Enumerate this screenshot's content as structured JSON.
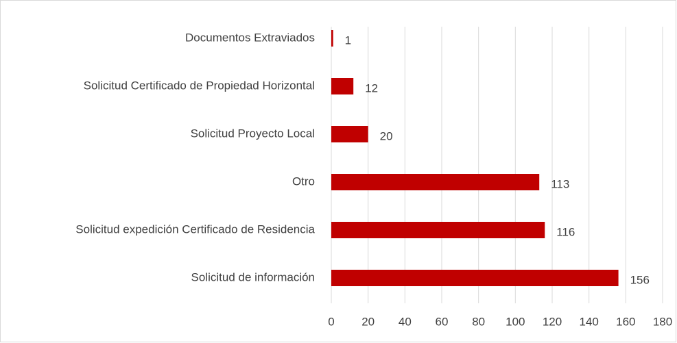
{
  "chart_data": {
    "type": "bar",
    "orientation": "horizontal",
    "categories": [
      "Documentos Extraviados",
      "Solicitud Certificado de Propiedad Horizontal",
      "Solicitud Proyecto Local",
      "Otro",
      "Solicitud expedición Certificado de Residencia",
      "Solicitud de información"
    ],
    "values": [
      1,
      12,
      20,
      113,
      116,
      156
    ],
    "color": "#c00000",
    "xlim": [
      0,
      180
    ],
    "xticks": [
      0,
      20,
      40,
      60,
      80,
      100,
      120,
      140,
      160,
      180
    ],
    "grid": true
  }
}
